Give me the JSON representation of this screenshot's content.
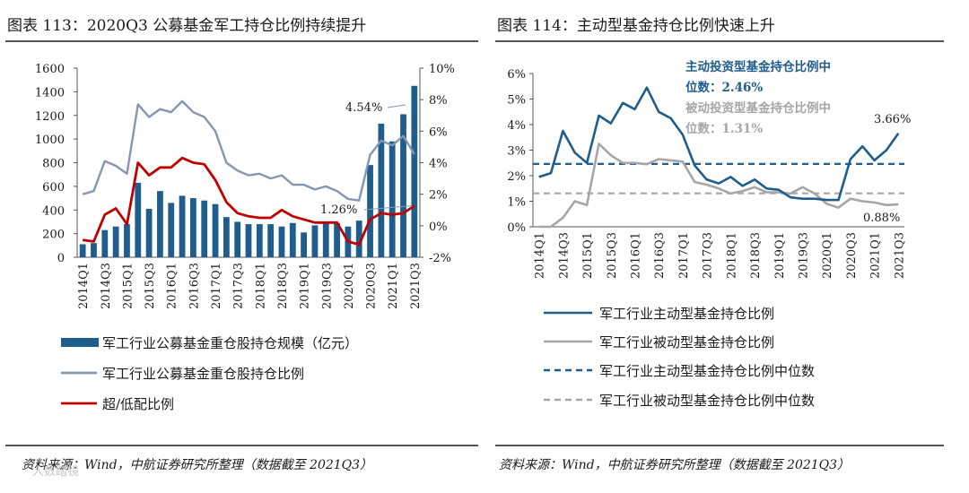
{
  "left": {
    "title": "图表 113：2020Q3 公募基金军工持仓比例持续提升",
    "source": "资料来源：Wind，中航证券研究所整理（数据截至 2021Q3）",
    "watermark": "人数踏镜",
    "chart_data": {
      "type": "bar",
      "title": "图表 113：2020Q3 公募基金军工持仓比例持续提升",
      "categories": [
        "2014Q1",
        "2014Q2",
        "2014Q3",
        "2014Q4",
        "2015Q1",
        "2015Q2",
        "2015Q3",
        "2015Q4",
        "2016Q1",
        "2016Q2",
        "2016Q3",
        "2016Q4",
        "2017Q1",
        "2017Q2",
        "2017Q3",
        "2017Q4",
        "2018Q1",
        "2018Q2",
        "2018Q3",
        "2018Q4",
        "2019Q1",
        "2019Q2",
        "2019Q3",
        "2019Q4",
        "2020Q1",
        "2020Q2",
        "2020Q3",
        "2020Q4",
        "2021Q1",
        "2021Q2",
        "2021Q3"
      ],
      "tick_labels": [
        "2014Q1",
        "2014Q3",
        "2015Q1",
        "2015Q3",
        "2016Q1",
        "2016Q3",
        "2017Q1",
        "2017Q3",
        "2018Q1",
        "2018Q3",
        "2019Q1",
        "2019Q3",
        "2020Q1",
        "2020Q3",
        "2021Q1",
        "2021Q3"
      ],
      "left_axis": {
        "ylim": [
          0,
          1600
        ],
        "ticks": [
          "0",
          "200",
          "400",
          "600",
          "800",
          "1000",
          "1200",
          "1400",
          "1600"
        ]
      },
      "right_axis": {
        "ylim": [
          -2,
          10
        ],
        "ticks": [
          "-2%",
          "0%",
          "2%",
          "4%",
          "6%",
          "8%",
          "10%"
        ]
      },
      "series": [
        {
          "name": "军工行业公募基金重仓股持仓规模（亿元）",
          "kind": "bar",
          "axis": "left",
          "color": "#1f5d8c",
          "values": [
            110,
            120,
            230,
            260,
            280,
            630,
            410,
            560,
            460,
            520,
            500,
            480,
            450,
            340,
            300,
            280,
            280,
            280,
            260,
            290,
            210,
            270,
            290,
            290,
            260,
            310,
            780,
            1130,
            980,
            1210,
            1450
          ]
        },
        {
          "name": "军工行业公募基金重仓股持仓比例",
          "kind": "line",
          "axis": "right",
          "color": "#8496b0",
          "values": [
            2.0,
            2.2,
            4.1,
            3.8,
            3.3,
            7.7,
            6.9,
            7.4,
            7.2,
            7.9,
            7.2,
            6.9,
            6.0,
            4.0,
            3.5,
            3.2,
            3.3,
            3.0,
            3.2,
            2.6,
            2.6,
            2.3,
            2.5,
            2.2,
            1.7,
            1.6,
            4.5,
            5.4,
            5.1,
            5.7,
            4.54
          ]
        },
        {
          "name": "超/低配比例",
          "kind": "line",
          "axis": "right",
          "color": "#c00000",
          "values": [
            -0.9,
            -1.0,
            0.7,
            1.1,
            0.1,
            4.0,
            3.2,
            3.7,
            3.7,
            4.3,
            4.0,
            3.9,
            2.9,
            1.5,
            0.8,
            0.6,
            0.5,
            0.5,
            1.0,
            0.6,
            0.4,
            0.2,
            0.2,
            0.2,
            -1.0,
            -1.2,
            0.4,
            0.8,
            0.7,
            0.8,
            1.26
          ]
        }
      ],
      "annotations": [
        "4.54%",
        "1.26%"
      ]
    }
  },
  "right": {
    "title": "图表 114：主动型基金持仓比例快速上升",
    "source": "资料来源：Wind，中航证券研究所整理（数据截至 2021Q3）",
    "chart_data": {
      "type": "line",
      "title": "图表 114：主动型基金持仓比例快速上升",
      "categories": [
        "2014Q1",
        "2014Q2",
        "2014Q3",
        "2014Q4",
        "2015Q1",
        "2015Q2",
        "2015Q3",
        "2015Q4",
        "2016Q1",
        "2016Q2",
        "2016Q3",
        "2016Q4",
        "2017Q1",
        "2017Q2",
        "2017Q3",
        "2017Q4",
        "2018Q1",
        "2018Q2",
        "2018Q3",
        "2018Q4",
        "2019Q1",
        "2019Q2",
        "2019Q3",
        "2019Q4",
        "2020Q1",
        "2020Q2",
        "2020Q3",
        "2020Q4",
        "2021Q1",
        "2021Q2",
        "2021Q3"
      ],
      "tick_labels": [
        "2014Q1",
        "2014Q3",
        "2015Q1",
        "2015Q3",
        "2016Q1",
        "2016Q3",
        "2017Q1",
        "2017Q3",
        "2018Q1",
        "2018Q3",
        "2019Q1",
        "2019Q3",
        "2020Q1",
        "2020Q3",
        "2021Q1",
        "2021Q3"
      ],
      "ylim": [
        0,
        6
      ],
      "yticks": [
        "0%",
        "1%",
        "2%",
        "3%",
        "4%",
        "5%",
        "6%"
      ],
      "series": [
        {
          "name": "军工行业主动型基金持仓比例",
          "kind": "line",
          "color": "#1f5d8c",
          "values": [
            1.95,
            2.1,
            3.75,
            2.9,
            2.5,
            4.35,
            4.05,
            4.85,
            4.6,
            5.45,
            4.5,
            4.25,
            3.6,
            2.4,
            1.85,
            1.7,
            1.95,
            1.6,
            1.85,
            1.5,
            1.45,
            1.15,
            1.1,
            1.1,
            1.05,
            1.05,
            2.65,
            3.15,
            2.6,
            3.0,
            3.66
          ]
        },
        {
          "name": "军工行业被动型基金持仓比例",
          "kind": "line",
          "color": "#a6a6a6",
          "values": [
            0.0,
            0.0,
            0.35,
            1.0,
            0.85,
            3.25,
            2.8,
            2.5,
            2.5,
            2.45,
            2.65,
            2.6,
            2.55,
            1.75,
            1.65,
            1.5,
            1.3,
            1.4,
            1.55,
            1.35,
            1.35,
            1.3,
            1.55,
            1.3,
            0.9,
            0.75,
            1.1,
            1.0,
            0.95,
            0.85,
            0.88
          ]
        },
        {
          "name": "军工行业主动型基金持仓比例中位数",
          "kind": "hline",
          "dash": true,
          "color": "#1f5d8c",
          "value": 2.46
        },
        {
          "name": "军工行业被动型基金持仓比例中位数",
          "kind": "hline",
          "dash": true,
          "color": "#a6a6a6",
          "value": 1.31
        }
      ],
      "annotations": {
        "active_median_line1": "主动投资型基金持仓比例中",
        "active_median_line2": "位数：2.46%",
        "passive_median_line1": "被动投资型基金持仓比例中",
        "passive_median_line2": "位数：1.31%",
        "active_end": "3.66%",
        "passive_end": "0.88%"
      }
    }
  }
}
